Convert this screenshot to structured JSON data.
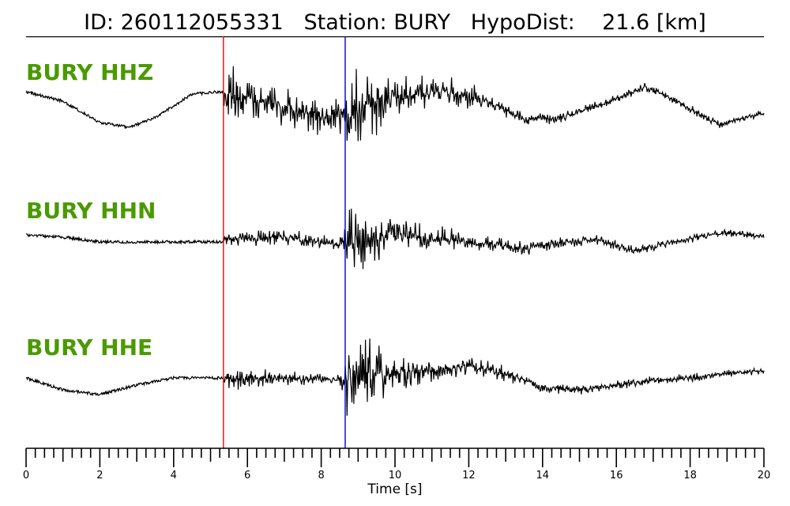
{
  "chart_data": {
    "type": "line",
    "title": {
      "id_label": "ID:",
      "id_value": "260112055331",
      "station_label": "Station:",
      "station_value": "BURY",
      "dist_label": "HypoDist:",
      "dist_value": "21.6",
      "dist_unit": "[km]"
    },
    "xlabel": "Time [s]",
    "xlim": [
      0,
      20
    ],
    "xticks": [
      0,
      2,
      4,
      6,
      8,
      10,
      12,
      14,
      16,
      18,
      20
    ],
    "minor_tick_step": 0.25,
    "label_color": "#4a9a00",
    "trace_color": "#000000",
    "picks": [
      {
        "phase": "P",
        "time": 5.35,
        "color": "#ff0000"
      },
      {
        "phase": "S",
        "time": 8.65,
        "color": "#0000cc"
      }
    ],
    "series": [
      {
        "name": "BURY HHZ",
        "pre_event": [
          [
            0,
            0.2
          ],
          [
            1,
            0.0
          ],
          [
            2,
            -0.45
          ],
          [
            2.8,
            -0.55
          ],
          [
            3.5,
            -0.35
          ],
          [
            4.5,
            0.15
          ],
          [
            5.35,
            0.2
          ]
        ],
        "envelope": [
          [
            5.35,
            0.15
          ],
          [
            5.5,
            0.9
          ],
          [
            6.0,
            0.55
          ],
          [
            7.0,
            0.45
          ],
          [
            8.0,
            0.4
          ],
          [
            8.6,
            0.45
          ],
          [
            8.8,
            0.85
          ],
          [
            9.2,
            1.0
          ],
          [
            10.0,
            0.45
          ],
          [
            11.0,
            0.35
          ],
          [
            12.0,
            0.3
          ],
          [
            13.0,
            0.15
          ],
          [
            15.0,
            0.12
          ],
          [
            17.0,
            0.1
          ],
          [
            20.0,
            0.08
          ]
        ],
        "trend": [
          [
            5.35,
            0.1
          ],
          [
            6.0,
            0.05
          ],
          [
            7.0,
            -0.1
          ],
          [
            8.0,
            -0.35
          ],
          [
            8.7,
            -0.25
          ],
          [
            9.5,
            0.05
          ],
          [
            10.5,
            0.15
          ],
          [
            11.5,
            0.2
          ],
          [
            12.5,
            0.0
          ],
          [
            13.5,
            -0.4
          ],
          [
            14.5,
            -0.35
          ],
          [
            15.5,
            -0.1
          ],
          [
            16.8,
            0.3
          ],
          [
            17.5,
            0.05
          ],
          [
            18.8,
            -0.5
          ],
          [
            19.5,
            -0.35
          ],
          [
            20.0,
            -0.25
          ]
        ]
      },
      {
        "name": "BURY HHN",
        "pre_event": [
          [
            0,
            0.1
          ],
          [
            1,
            0.05
          ],
          [
            2,
            -0.05
          ],
          [
            3,
            -0.05
          ],
          [
            4,
            -0.05
          ],
          [
            5.35,
            -0.05
          ]
        ],
        "envelope": [
          [
            5.35,
            0.1
          ],
          [
            5.6,
            0.15
          ],
          [
            6.5,
            0.2
          ],
          [
            7.5,
            0.2
          ],
          [
            8.5,
            0.15
          ],
          [
            8.7,
            0.9
          ],
          [
            9.0,
            1.0
          ],
          [
            9.6,
            0.55
          ],
          [
            10.5,
            0.35
          ],
          [
            12.0,
            0.2
          ],
          [
            14.0,
            0.15
          ],
          [
            17.0,
            0.1
          ],
          [
            20.0,
            0.08
          ]
        ],
        "trend": [
          [
            5.35,
            0.0
          ],
          [
            7.0,
            0.05
          ],
          [
            8.5,
            -0.1
          ],
          [
            9.5,
            0.05
          ],
          [
            11.0,
            0.05
          ],
          [
            12.5,
            -0.1
          ],
          [
            13.5,
            -0.2
          ],
          [
            14.5,
            -0.05
          ],
          [
            15.5,
            0.0
          ],
          [
            16.5,
            -0.25
          ],
          [
            17.5,
            -0.05
          ],
          [
            19.0,
            0.15
          ],
          [
            20.0,
            0.05
          ]
        ]
      },
      {
        "name": "BURY HHE",
        "pre_event": [
          [
            0,
            0.0
          ],
          [
            1,
            -0.25
          ],
          [
            2,
            -0.35
          ],
          [
            3,
            -0.15
          ],
          [
            4,
            0.0
          ],
          [
            5.35,
            0.0
          ]
        ],
        "envelope": [
          [
            5.35,
            0.1
          ],
          [
            5.6,
            0.3
          ],
          [
            7.0,
            0.15
          ],
          [
            8.5,
            0.12
          ],
          [
            8.7,
            0.8
          ],
          [
            9.0,
            1.0
          ],
          [
            9.8,
            0.55
          ],
          [
            11.0,
            0.25
          ],
          [
            12.5,
            0.2
          ],
          [
            14.0,
            0.12
          ],
          [
            17.0,
            0.1
          ],
          [
            20.0,
            0.08
          ]
        ],
        "trend": [
          [
            5.35,
            0.0
          ],
          [
            7.0,
            0.0
          ],
          [
            8.5,
            -0.05
          ],
          [
            10.0,
            0.1
          ],
          [
            11.0,
            0.15
          ],
          [
            12.0,
            0.25
          ],
          [
            13.0,
            0.1
          ],
          [
            14.0,
            -0.2
          ],
          [
            15.0,
            -0.25
          ],
          [
            16.0,
            -0.15
          ],
          [
            17.0,
            -0.05
          ],
          [
            18.0,
            0.0
          ],
          [
            19.0,
            0.1
          ],
          [
            20.0,
            0.15
          ]
        ]
      }
    ]
  }
}
